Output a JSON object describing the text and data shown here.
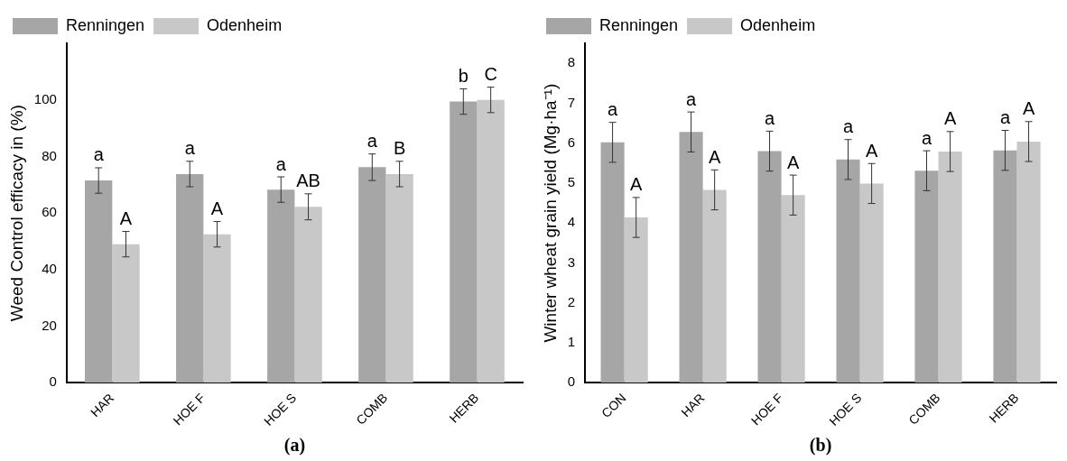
{
  "chart_data": [
    {
      "type": "bar",
      "xlabel": "(a)",
      "ylabel": "Weed Control efficacy in (%)",
      "categories": [
        "HAR",
        "HOE F",
        "HOE S",
        "COMB",
        "HERB"
      ],
      "series": [
        {
          "name": "Renningen",
          "color": "#a6a6a6",
          "values": [
            71.5,
            73.8,
            68.3,
            76.2,
            99.4
          ],
          "errors": [
            4.5,
            4.5,
            4.5,
            4.7,
            4.5
          ],
          "value_labels": [
            "a",
            "a",
            "a",
            "a",
            "b"
          ]
        },
        {
          "name": "Odenheim",
          "color": "#c8c8c8",
          "values": [
            49,
            52.5,
            62.2,
            73.8,
            100
          ],
          "errors": [
            4.5,
            4.5,
            4.6,
            4.5,
            4.5
          ],
          "value_labels": [
            "A",
            "A",
            "AB",
            "B",
            "C"
          ]
        }
      ],
      "ylim": [
        0,
        120
      ],
      "yticks": [
        0,
        20,
        40,
        60,
        80,
        100
      ],
      "grid": false,
      "legend": "top left"
    },
    {
      "type": "bar",
      "xlabel": "(b)",
      "ylabel": "Winter wheat grain yield (Mg·ha⁻¹)",
      "categories": [
        "CON",
        "HAR",
        "HOE F",
        "HOE S",
        "COMB",
        "HERB"
      ],
      "series": [
        {
          "name": "Renningen",
          "color": "#a6a6a6",
          "values": [
            6.02,
            6.28,
            5.8,
            5.59,
            5.31,
            5.82
          ],
          "errors": [
            0.5,
            0.5,
            0.5,
            0.5,
            0.5,
            0.5
          ],
          "value_labels": [
            "a",
            "a",
            "a",
            "a",
            "a",
            "a"
          ]
        },
        {
          "name": "Odenheim",
          "color": "#c8c8c8",
          "values": [
            4.14,
            4.83,
            4.7,
            4.99,
            5.79,
            6.04
          ],
          "errors": [
            0.5,
            0.5,
            0.5,
            0.5,
            0.5,
            0.5
          ],
          "value_labels": [
            "A",
            "A",
            "A",
            "A",
            "A",
            "A"
          ]
        }
      ],
      "ylim": [
        0,
        8.5
      ],
      "yticks": [
        0,
        1,
        2,
        3,
        4,
        5,
        6,
        7,
        8
      ],
      "grid": false,
      "legend": "top left"
    }
  ]
}
